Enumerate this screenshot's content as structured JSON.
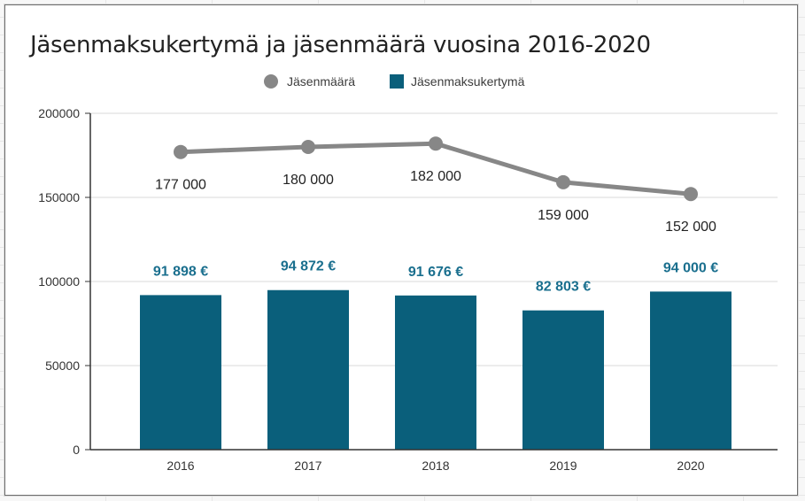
{
  "chart_data": {
    "type": "bar",
    "title": "Jäsenmaksukertymä ja jäsenmäärä vuosina 2016-2020",
    "categories": [
      "2016",
      "2017",
      "2018",
      "2019",
      "2020"
    ],
    "series": [
      {
        "name": "Jäsenmäärä",
        "type": "line",
        "values": [
          177000,
          180000,
          182000,
          159000,
          152000
        ],
        "labels": [
          "177 000",
          "180 000",
          "182 000",
          "159 000",
          "152 000"
        ],
        "color": "#878787"
      },
      {
        "name": "Jäsenmaksukertymä",
        "type": "bar",
        "values": [
          91898,
          94872,
          91676,
          82803,
          94000
        ],
        "labels": [
          "91 898 €",
          "94 872 €",
          "91 676 €",
          "82 803 €",
          "94 000 €"
        ],
        "color": "#0a5f7b",
        "label_color": "#1a6f8e"
      }
    ],
    "ylim": [
      0,
      200000
    ],
    "yticks": [
      "0",
      "50000",
      "100000",
      "150000",
      "200000"
    ],
    "grid": true,
    "legend_position": "top-center"
  }
}
